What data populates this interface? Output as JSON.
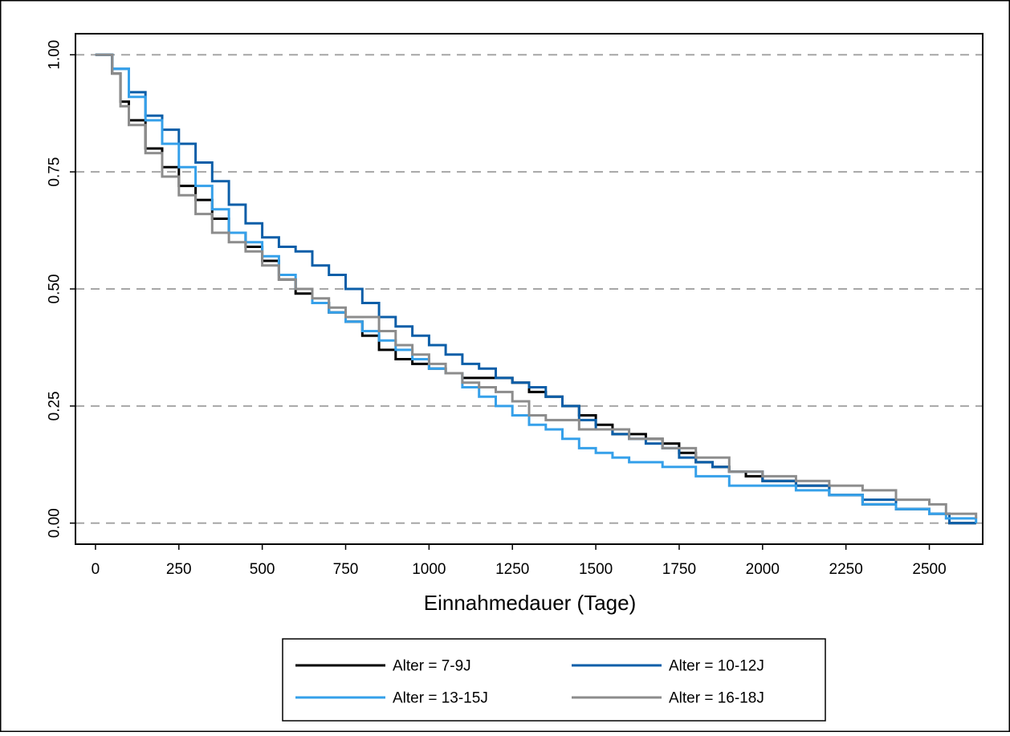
{
  "chart_data": {
    "type": "line",
    "title": "",
    "xlabel": "Einnahmedauer (Tage)",
    "ylabel": "",
    "xlim": [
      -60,
      2660
    ],
    "ylim": [
      -0.045,
      1.045
    ],
    "x_ticks": [
      0,
      250,
      500,
      750,
      1000,
      1250,
      1500,
      1750,
      2000,
      2250,
      2500
    ],
    "x_tick_labels": [
      "0",
      "250",
      "500",
      "750",
      "1000",
      "1250",
      "1500",
      "1750",
      "2000",
      "2250",
      "2500"
    ],
    "y_ticks": [
      0,
      0.25,
      0.5,
      0.75,
      1.0
    ],
    "y_tick_labels": [
      "0.00",
      "0.25",
      "0.50",
      "0.75",
      "1.00"
    ],
    "grid": "horizontal dashed",
    "legend_position": "bottom",
    "series": [
      {
        "name": "Alter = 7-9J",
        "color": "#000000",
        "x": [
          0,
          25,
          50,
          75,
          100,
          150,
          200,
          250,
          300,
          350,
          400,
          450,
          500,
          550,
          600,
          650,
          700,
          750,
          800,
          850,
          900,
          950,
          1000,
          1050,
          1100,
          1150,
          1200,
          1250,
          1300,
          1350,
          1400,
          1450,
          1500,
          1550,
          1600,
          1650,
          1700,
          1750,
          1800,
          1850,
          1900,
          1950,
          2000,
          2100,
          2200,
          2300,
          2400,
          2500,
          2560,
          2640
        ],
        "y": [
          1.0,
          1.0,
          0.96,
          0.9,
          0.86,
          0.8,
          0.76,
          0.72,
          0.69,
          0.65,
          0.62,
          0.59,
          0.56,
          0.52,
          0.49,
          0.47,
          0.45,
          0.43,
          0.4,
          0.37,
          0.35,
          0.34,
          0.33,
          0.32,
          0.31,
          0.31,
          0.31,
          0.3,
          0.28,
          0.27,
          0.25,
          0.23,
          0.21,
          0.19,
          0.19,
          0.18,
          0.17,
          0.15,
          0.13,
          0.12,
          0.11,
          0.1,
          0.09,
          0.08,
          0.06,
          0.04,
          0.03,
          0.02,
          0.0,
          0.0
        ]
      },
      {
        "name": "Alter = 10-12J",
        "color": "#0b5ea8",
        "x": [
          0,
          25,
          50,
          100,
          150,
          200,
          250,
          300,
          350,
          400,
          450,
          500,
          550,
          600,
          650,
          700,
          750,
          800,
          850,
          900,
          950,
          1000,
          1050,
          1100,
          1150,
          1200,
          1250,
          1300,
          1350,
          1400,
          1450,
          1500,
          1550,
          1600,
          1650,
          1700,
          1750,
          1800,
          1850,
          1900,
          2000,
          2100,
          2200,
          2300,
          2400,
          2500,
          2560,
          2640
        ],
        "y": [
          1.0,
          1.0,
          0.97,
          0.92,
          0.87,
          0.84,
          0.81,
          0.77,
          0.73,
          0.68,
          0.64,
          0.61,
          0.59,
          0.58,
          0.55,
          0.53,
          0.5,
          0.47,
          0.44,
          0.42,
          0.4,
          0.38,
          0.36,
          0.34,
          0.33,
          0.31,
          0.3,
          0.29,
          0.27,
          0.25,
          0.22,
          0.2,
          0.19,
          0.18,
          0.17,
          0.16,
          0.14,
          0.13,
          0.12,
          0.11,
          0.09,
          0.08,
          0.06,
          0.05,
          0.03,
          0.02,
          0.0,
          0.0
        ]
      },
      {
        "name": "Alter = 13-15J",
        "color": "#35a0ea",
        "x": [
          0,
          25,
          50,
          100,
          150,
          200,
          250,
          300,
          350,
          400,
          450,
          500,
          550,
          600,
          650,
          700,
          750,
          800,
          850,
          900,
          950,
          1000,
          1050,
          1100,
          1150,
          1200,
          1250,
          1300,
          1350,
          1400,
          1450,
          1500,
          1550,
          1600,
          1700,
          1800,
          1900,
          2000,
          2100,
          2200,
          2300,
          2400,
          2500,
          2550,
          2640
        ],
        "y": [
          1.0,
          1.0,
          0.97,
          0.91,
          0.86,
          0.81,
          0.76,
          0.72,
          0.67,
          0.62,
          0.6,
          0.57,
          0.53,
          0.5,
          0.47,
          0.45,
          0.43,
          0.41,
          0.39,
          0.37,
          0.35,
          0.33,
          0.32,
          0.29,
          0.27,
          0.25,
          0.23,
          0.21,
          0.2,
          0.18,
          0.16,
          0.15,
          0.14,
          0.13,
          0.12,
          0.1,
          0.08,
          0.08,
          0.07,
          0.06,
          0.04,
          0.03,
          0.02,
          0.01,
          0.0
        ]
      },
      {
        "name": "Alter = 16-18J",
        "color": "#8c8c8c",
        "x": [
          0,
          25,
          50,
          75,
          100,
          150,
          200,
          250,
          300,
          350,
          400,
          450,
          500,
          550,
          600,
          650,
          700,
          750,
          800,
          850,
          900,
          950,
          1000,
          1050,
          1100,
          1150,
          1200,
          1250,
          1300,
          1350,
          1400,
          1450,
          1500,
          1600,
          1700,
          1800,
          1900,
          2000,
          2100,
          2200,
          2300,
          2400,
          2500,
          2550,
          2640
        ],
        "y": [
          1.0,
          1.0,
          0.96,
          0.89,
          0.85,
          0.79,
          0.74,
          0.7,
          0.66,
          0.62,
          0.6,
          0.58,
          0.55,
          0.52,
          0.5,
          0.48,
          0.46,
          0.44,
          0.44,
          0.41,
          0.38,
          0.36,
          0.34,
          0.32,
          0.3,
          0.29,
          0.28,
          0.26,
          0.23,
          0.22,
          0.22,
          0.2,
          0.2,
          0.18,
          0.16,
          0.14,
          0.11,
          0.1,
          0.09,
          0.08,
          0.07,
          0.05,
          0.04,
          0.02,
          0.01
        ]
      }
    ]
  }
}
